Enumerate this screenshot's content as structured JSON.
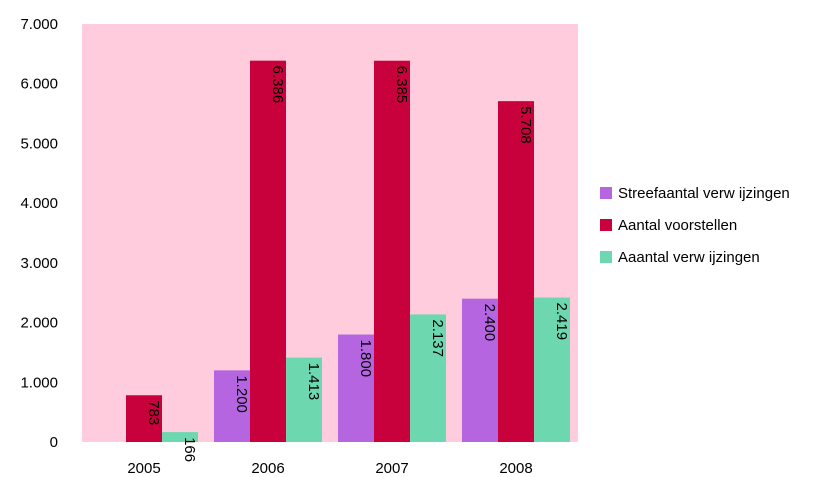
{
  "chart_data": {
    "type": "bar",
    "categories": [
      "2005",
      "2006",
      "2007",
      "2008"
    ],
    "series": [
      {
        "name": "Streefaantal verw ijzingen",
        "color": "#b565e0",
        "values": [
          null,
          1200,
          1800,
          2400
        ],
        "labels": [
          "",
          "1.200",
          "1.800",
          "2.400"
        ]
      },
      {
        "name": "Aantal voorstellen",
        "color": "#c8003c",
        "values": [
          783,
          6386,
          6385,
          5708
        ],
        "labels": [
          "783",
          "6.386",
          "6.385",
          "5.708"
        ]
      },
      {
        "name": "Aaantal verw ijzingen",
        "color": "#6dd8b0",
        "values": [
          166,
          1413,
          2137,
          2419
        ],
        "labels": [
          "166",
          "1.413",
          "2.137",
          "2.419"
        ]
      }
    ],
    "y_ticks": [
      "0",
      "1.000",
      "2.000",
      "3.000",
      "4.000",
      "5.000",
      "6.000",
      "7.000"
    ],
    "ylim": [
      0,
      7000
    ],
    "plot_background": "#ffccdd",
    "legend_position": "right",
    "grid": false
  }
}
